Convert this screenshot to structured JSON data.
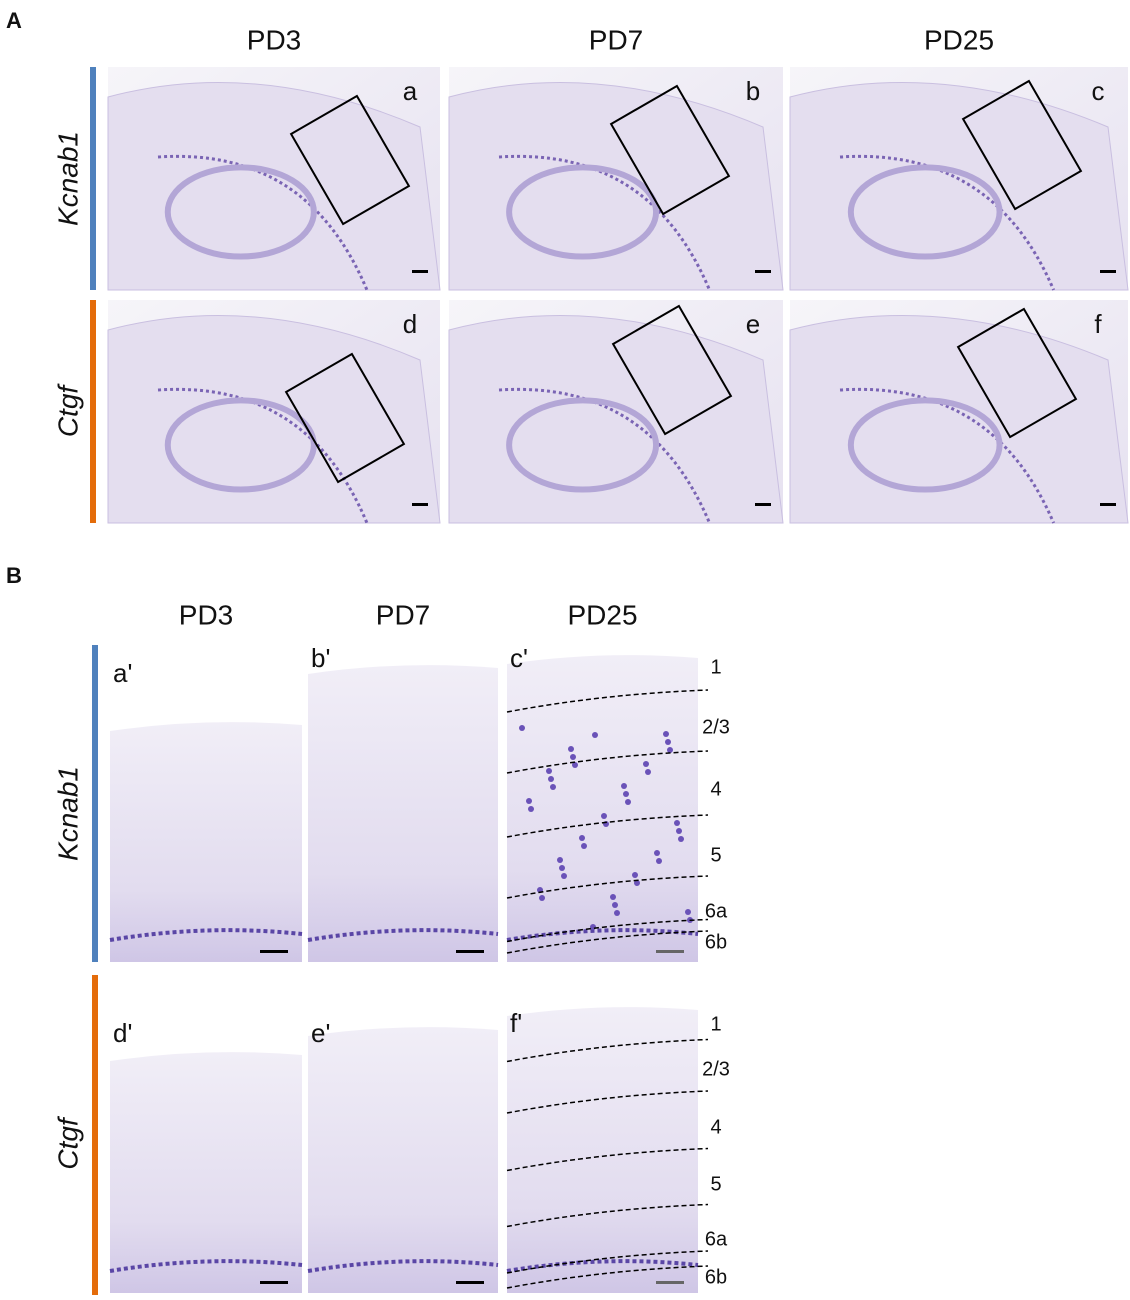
{
  "panel_a": {
    "label": "A",
    "columns": [
      "PD3",
      "PD7",
      "PD25"
    ],
    "rows": [
      "Kcnab1",
      "Ctgf"
    ],
    "tiles": [
      "a",
      "b",
      "c",
      "d",
      "e",
      "f"
    ]
  },
  "panel_b": {
    "label": "B",
    "columns": [
      "PD3",
      "PD7",
      "PD25"
    ],
    "rows": [
      "Kcnab1",
      "Ctgf"
    ],
    "tiles": [
      "a'",
      "b'",
      "c'",
      "d'",
      "e'",
      "f'"
    ],
    "layers": [
      "1",
      "2/3",
      "4",
      "5",
      "6a",
      "6b"
    ]
  }
}
